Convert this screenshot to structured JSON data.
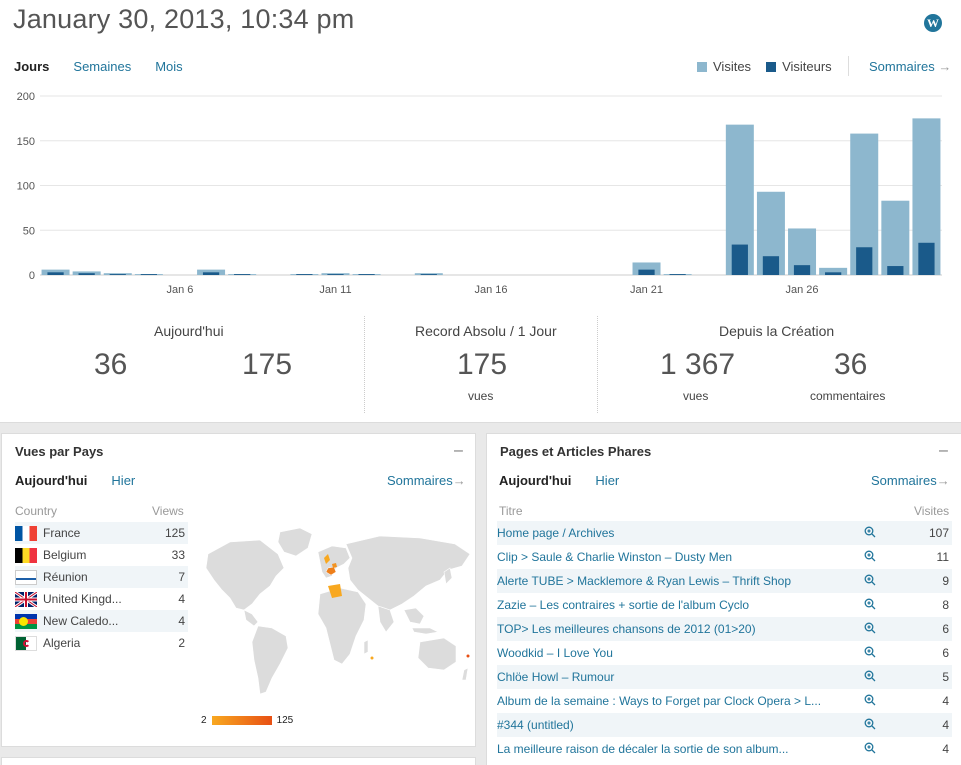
{
  "header": {
    "date_title": "January 30, 2013, 10:34 pm"
  },
  "period_tabs": [
    {
      "label": "Jours",
      "active": true
    },
    {
      "label": "Semaines",
      "active": false
    },
    {
      "label": "Mois",
      "active": false
    }
  ],
  "legend": {
    "visits_label": "Visites",
    "visitors_label": "Visiteurs"
  },
  "summary_link": "Sommaires",
  "colors": {
    "visits": "#8db7ce",
    "visitors": "#1a5a8a",
    "link": "#21759b"
  },
  "chart_data": {
    "type": "bar",
    "yticks": [
      "200",
      "150",
      "100",
      "50",
      "0"
    ],
    "ylim": [
      0,
      200
    ],
    "xtick_labels": [
      {
        "label": "Jan 6",
        "index": 4
      },
      {
        "label": "Jan 11",
        "index": 9
      },
      {
        "label": "Jan 16",
        "index": 14
      },
      {
        "label": "Jan 21",
        "index": 19
      },
      {
        "label": "Jan 26",
        "index": 24
      }
    ],
    "categories": [
      "Jan 2",
      "Jan 3",
      "Jan 4",
      "Jan 5",
      "Jan 6",
      "Jan 7",
      "Jan 8",
      "Jan 9",
      "Jan 10",
      "Jan 11",
      "Jan 12",
      "Jan 13",
      "Jan 14",
      "Jan 15",
      "Jan 16",
      "Jan 17",
      "Jan 18",
      "Jan 19",
      "Jan 20",
      "Jan 21",
      "Jan 22",
      "Jan 23",
      "Jan 24",
      "Jan 25",
      "Jan 26",
      "Jan 27",
      "Jan 28",
      "Jan 29",
      "Jan 30"
    ],
    "series": [
      {
        "name": "Visites",
        "values": [
          6,
          4,
          2,
          1,
          0,
          6,
          1,
          0,
          1,
          2,
          1,
          0,
          2,
          0,
          0,
          0,
          0,
          0,
          0,
          14,
          1,
          0,
          168,
          93,
          52,
          8,
          158,
          83,
          175
        ]
      },
      {
        "name": "Visiteurs",
        "values": [
          3,
          2,
          1,
          1,
          0,
          3,
          1,
          0,
          1,
          1,
          1,
          0,
          1,
          0,
          0,
          0,
          0,
          0,
          0,
          6,
          1,
          0,
          34,
          21,
          11,
          3,
          31,
          10,
          36
        ]
      }
    ]
  },
  "stats": {
    "today": {
      "heading": "Aujourd'hui",
      "value1": "36",
      "value2": "175"
    },
    "record": {
      "heading": "Record Absolu / 1 Jour",
      "value": "175",
      "sub": "vues"
    },
    "since": {
      "heading": "Depuis la Création",
      "views": "1 367",
      "views_label": "vues",
      "comments": "36",
      "comments_label": "commentaires"
    }
  },
  "countries_panel": {
    "title": "Vues par Pays",
    "tabs": [
      {
        "label": "Aujourd'hui",
        "active": true
      },
      {
        "label": "Hier",
        "active": false
      }
    ],
    "summary": "Sommaires",
    "col_country": "Country",
    "col_views": "Views",
    "rows": [
      {
        "name": "France",
        "views": "125",
        "flag": "france"
      },
      {
        "name": "Belgium",
        "views": "33",
        "flag": "belgium"
      },
      {
        "name": "Réunion",
        "views": "7",
        "flag": "reunion"
      },
      {
        "name": "United Kingd...",
        "views": "4",
        "flag": "uk"
      },
      {
        "name": "New Caledo...",
        "views": "4",
        "flag": "new-caledonia"
      },
      {
        "name": "Algeria",
        "views": "2",
        "flag": "algeria"
      }
    ],
    "scale_min": "2",
    "scale_max": "125"
  },
  "pages_panel": {
    "title": "Pages et Articles Phares",
    "tabs": [
      {
        "label": "Aujourd'hui",
        "active": true
      },
      {
        "label": "Hier",
        "active": false
      }
    ],
    "summary": "Sommaires",
    "col_title": "Titre",
    "col_visits": "Visites",
    "rows": [
      {
        "title": "Home page / Archives",
        "visits": "107"
      },
      {
        "title": "Clip > Saule & Charlie Winston – Dusty Men",
        "visits": "11"
      },
      {
        "title": "Alerte TUBE > Macklemore & Ryan Lewis – Thrift Shop",
        "visits": "9"
      },
      {
        "title": "Zazie – Les contraires + sortie de l'album Cyclo",
        "visits": "8"
      },
      {
        "title": "TOP> Les meilleures chansons de 2012 (01>20)",
        "visits": "6"
      },
      {
        "title": "Woodkid – I Love You",
        "visits": "6"
      },
      {
        "title": "Chlöe Howl – Rumour",
        "visits": "5"
      },
      {
        "title": "Album de la semaine : Ways to Forget par Clock Opera > L...",
        "visits": "4"
      },
      {
        "title": "#344 (untitled)",
        "visits": "4"
      },
      {
        "title": "La meilleure raison de décaler la sortie de son album...",
        "visits": "4"
      }
    ]
  }
}
